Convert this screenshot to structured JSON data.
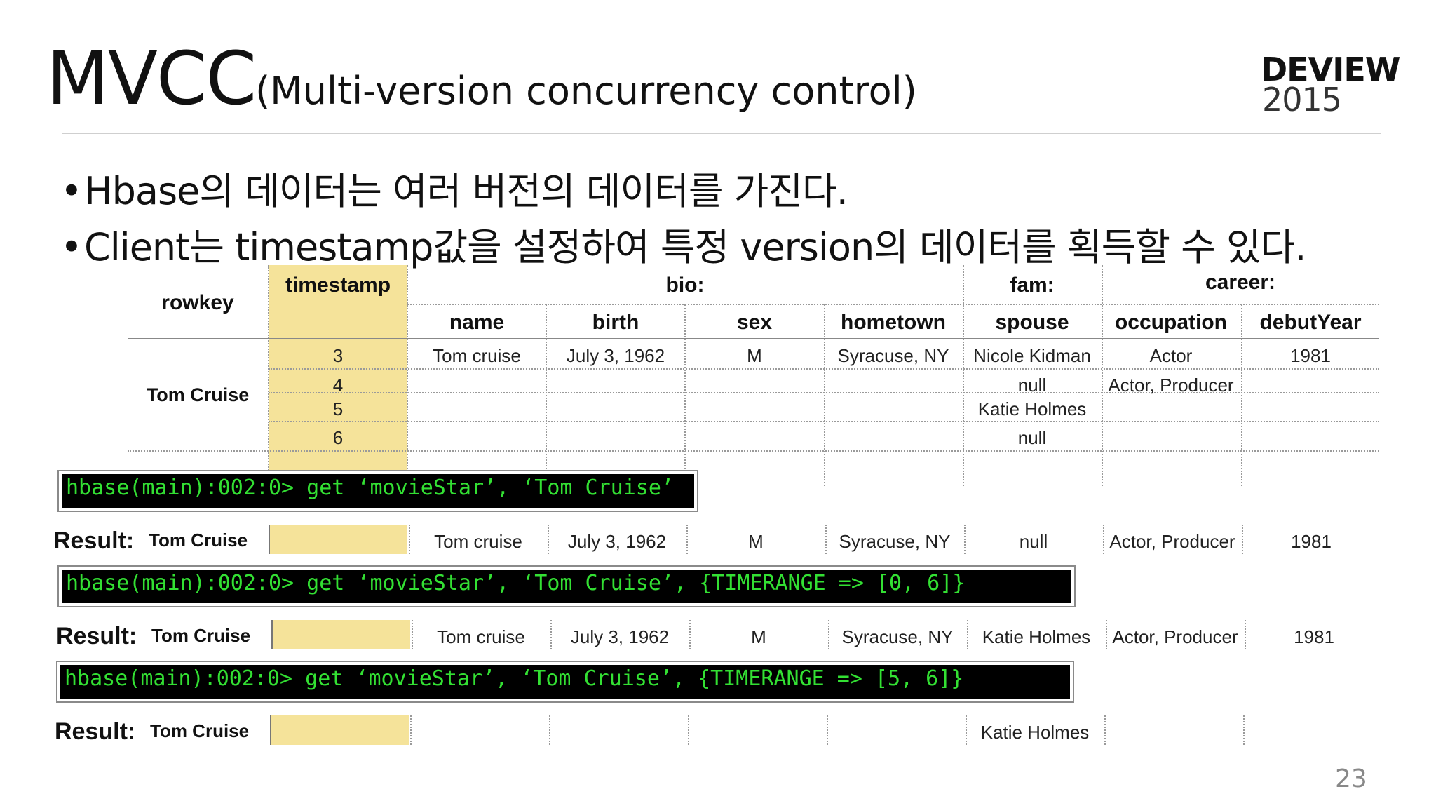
{
  "title": {
    "main": "MVCC",
    "sub": "(Multi-version concurrency control)"
  },
  "logo": {
    "line1": "DEVIEW",
    "line2": "2015"
  },
  "bullets": [
    "Hbase의 데이터는 여러 버전의 데이터를 가진다.",
    "Client는 timestamp값을 설정하여 특정 version의 데이터를 획득할 수 있다."
  ],
  "bullet_marker": "•",
  "table": {
    "rowkey_header": "rowkey",
    "timestamp_header": "timestamp",
    "families": [
      "bio:",
      "fam:",
      "career:"
    ],
    "columns": [
      "name",
      "birth",
      "sex",
      "hometown",
      "spouse",
      "occupation",
      "debutYear"
    ],
    "rowkey": "Tom Cruise",
    "rows": [
      {
        "ts": "3",
        "cells": [
          "Tom cruise",
          "July 3, 1962",
          "M",
          "Syracuse, NY",
          "Nicole Kidman",
          "Actor",
          "1981"
        ]
      },
      {
        "ts": "4",
        "cells": [
          "",
          "",
          "",
          "",
          "null",
          "Actor, Producer",
          ""
        ]
      },
      {
        "ts": "5",
        "cells": [
          "",
          "",
          "",
          "",
          "Katie Holmes",
          "",
          ""
        ]
      },
      {
        "ts": "6",
        "cells": [
          "",
          "",
          "",
          "",
          "null",
          "",
          ""
        ]
      }
    ]
  },
  "queries": [
    {
      "command": "hbase(main):002:0> get ‘movieStar’, ‘Tom Cruise’",
      "result_label": "Result:",
      "result_key": "Tom Cruise",
      "cells": [
        "Tom cruise",
        "July 3, 1962",
        "M",
        "Syracuse, NY",
        "null",
        "Actor, Producer",
        "1981"
      ]
    },
    {
      "command": "hbase(main):002:0> get ‘movieStar’, ‘Tom Cruise’, {TIMERANGE => [0, 6]}",
      "result_label": "Result:",
      "result_key": "Tom Cruise",
      "cells": [
        "Tom cruise",
        "July 3, 1962",
        "M",
        "Syracuse, NY",
        "Katie Holmes",
        "Actor, Producer",
        "1981"
      ]
    },
    {
      "command": "hbase(main):002:0> get ‘movieStar’, ‘Tom Cruise’, {TIMERANGE => [5, 6]}",
      "result_label": "Result:",
      "result_key": "Tom Cruise",
      "cells": [
        "",
        "",
        "",
        "",
        "Katie Holmes",
        "",
        ""
      ]
    }
  ],
  "page_number": "23"
}
